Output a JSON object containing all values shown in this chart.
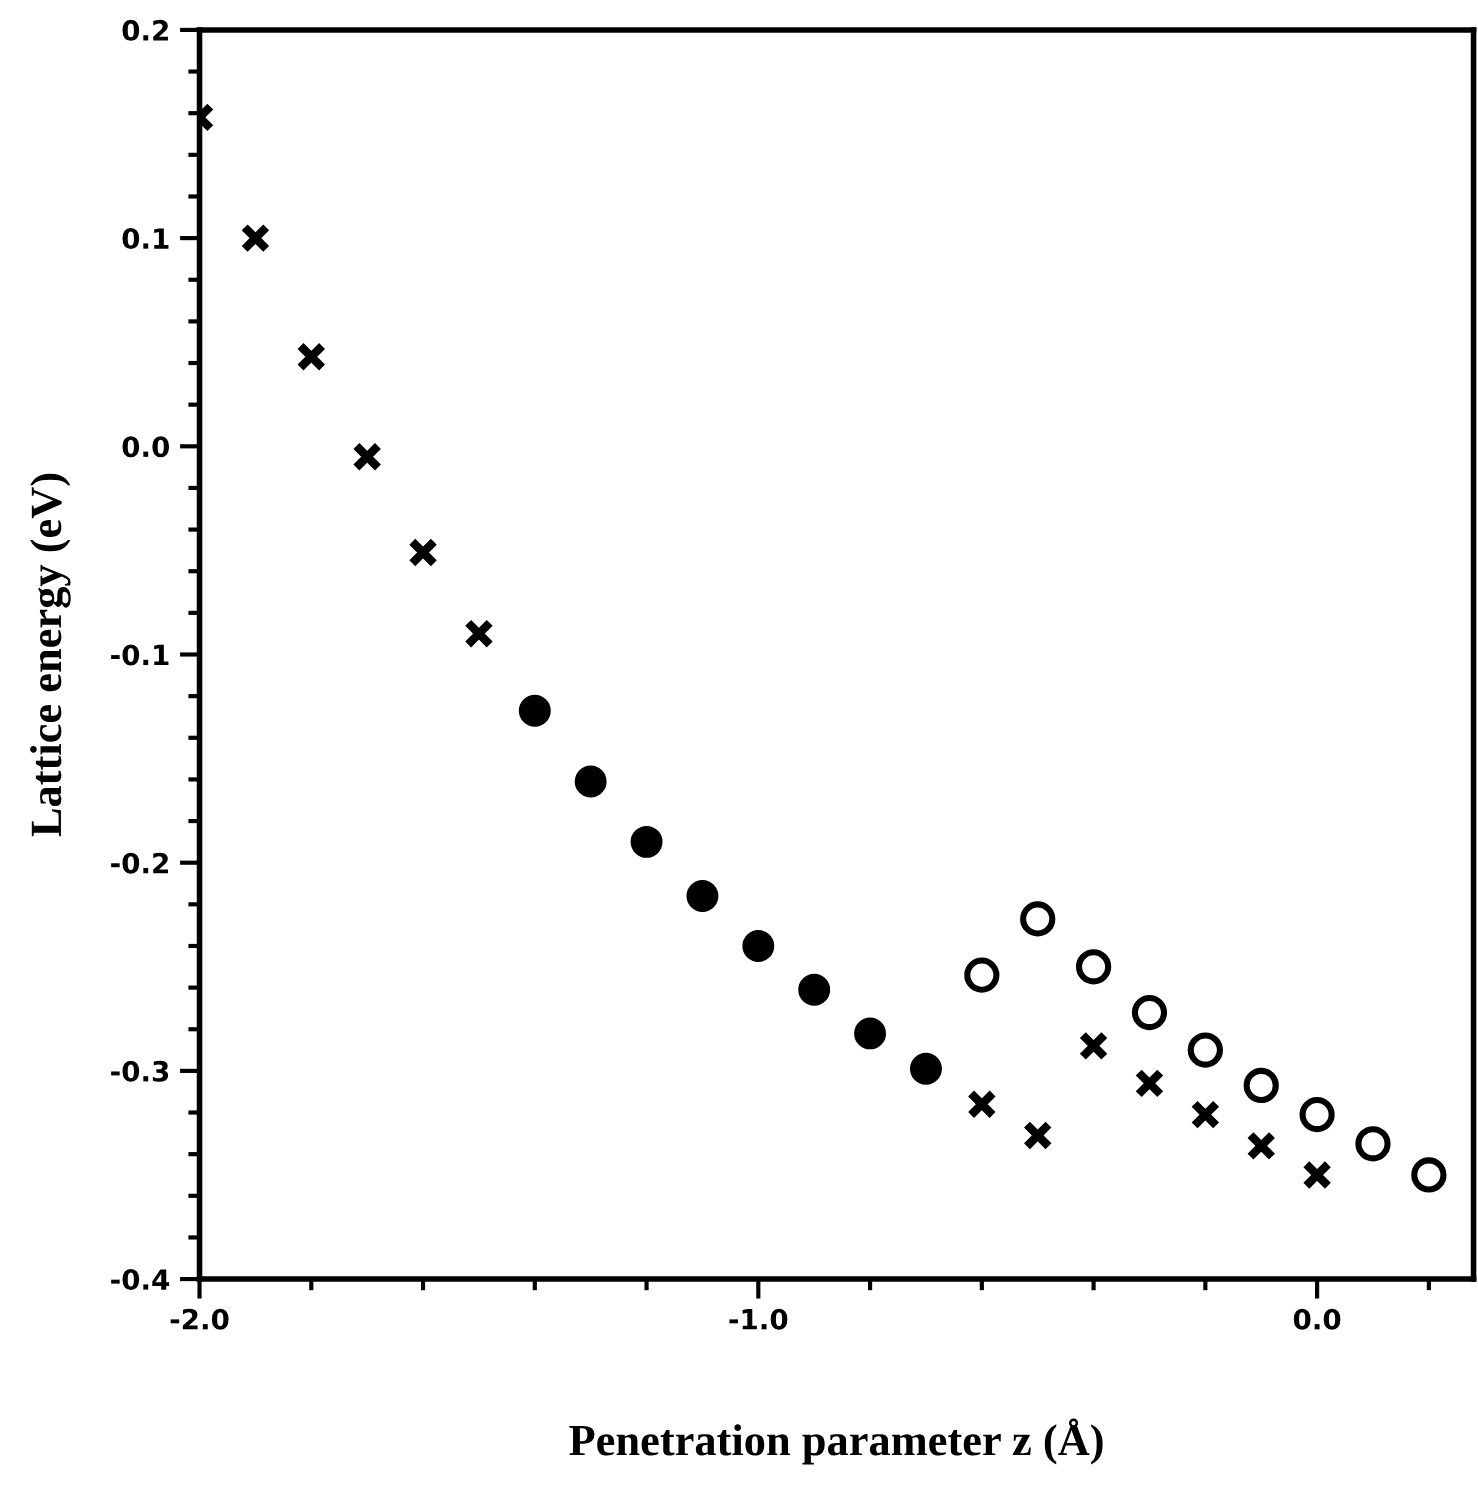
{
  "chart_data": {
    "type": "scatter",
    "xlabel": "Penetration parameter z (Å)",
    "ylabel": "Lattice energy (eV)",
    "xlim": [
      -2.0,
      0.28
    ],
    "ylim": [
      -0.4,
      0.2
    ],
    "xticks": [
      {
        "value": -2.0,
        "label": "-2.0"
      },
      {
        "value": -1.8,
        "label": null
      },
      {
        "value": -1.6,
        "label": null
      },
      {
        "value": -1.4,
        "label": null
      },
      {
        "value": -1.2,
        "label": null
      },
      {
        "value": -1.0,
        "label": "-1.0"
      },
      {
        "value": -0.8,
        "label": null
      },
      {
        "value": -0.6,
        "label": null
      },
      {
        "value": -0.4,
        "label": null
      },
      {
        "value": -0.2,
        "label": null
      },
      {
        "value": 0.0,
        "label": "0.0"
      },
      {
        "value": 0.2,
        "label": null
      }
    ],
    "yticks": [
      -0.4,
      {
        "value": -0.38,
        "label": null
      },
      {
        "value": -0.36,
        "label": null
      },
      {
        "value": -0.34,
        "label": null
      },
      {
        "value": -0.32,
        "label": null
      },
      -0.3,
      {
        "value": -0.28,
        "label": null
      },
      {
        "value": -0.26,
        "label": null
      },
      {
        "value": -0.24,
        "label": null
      },
      {
        "value": -0.22,
        "label": null
      },
      -0.2,
      {
        "value": -0.18,
        "label": null
      },
      {
        "value": -0.16,
        "label": null
      },
      {
        "value": -0.14,
        "label": null
      },
      {
        "value": -0.12,
        "label": null
      },
      -0.1,
      {
        "value": -0.08,
        "label": null
      },
      {
        "value": -0.06,
        "label": null
      },
      {
        "value": -0.04,
        "label": null
      },
      {
        "value": -0.02,
        "label": null
      },
      {
        "value": 0.0,
        "label": "0.0"
      },
      {
        "value": 0.02,
        "label": null
      },
      {
        "value": 0.04,
        "label": null
      },
      {
        "value": 0.06,
        "label": null
      },
      {
        "value": 0.08,
        "label": null
      },
      0.1,
      {
        "value": 0.12,
        "label": null
      },
      {
        "value": 0.14,
        "label": null
      },
      {
        "value": 0.16,
        "label": null
      },
      {
        "value": 0.18,
        "label": null
      },
      0.2
    ],
    "grid": false,
    "legend": false,
    "series": [
      {
        "color": "#000000",
        "marker": "cross",
        "x": [
          -2.0,
          -1.9,
          -1.8,
          -1.7,
          -1.6,
          -1.5,
          -0.6,
          -0.5,
          -0.4,
          -0.3,
          -0.2,
          -0.1,
          0.0
        ],
        "values": [
          0.158,
          0.1,
          0.043,
          -0.005,
          -0.051,
          -0.09,
          -0.316,
          -0.331,
          -0.288,
          -0.306,
          -0.321,
          -0.336,
          -0.35
        ]
      },
      {
        "color": "#000000",
        "marker": "circle",
        "x": [
          -1.4,
          -1.3,
          -1.2,
          -1.1,
          -1.0,
          -0.9,
          -0.8,
          -0.7
        ],
        "values": [
          -0.127,
          -0.161,
          -0.19,
          -0.216,
          -0.24,
          -0.261,
          -0.282,
          -0.299
        ]
      },
      {
        "color": "#000000",
        "marker": "circle",
        "x": [
          -0.6,
          -0.5,
          -0.4,
          -0.3,
          -0.2,
          -0.1,
          0.0,
          0.1,
          0.2
        ],
        "values": [
          -0.254,
          -0.227,
          -0.25,
          -0.272,
          -0.29,
          -0.307,
          -0.321,
          -0.335,
          -0.35
        ]
      }
    ]
  }
}
